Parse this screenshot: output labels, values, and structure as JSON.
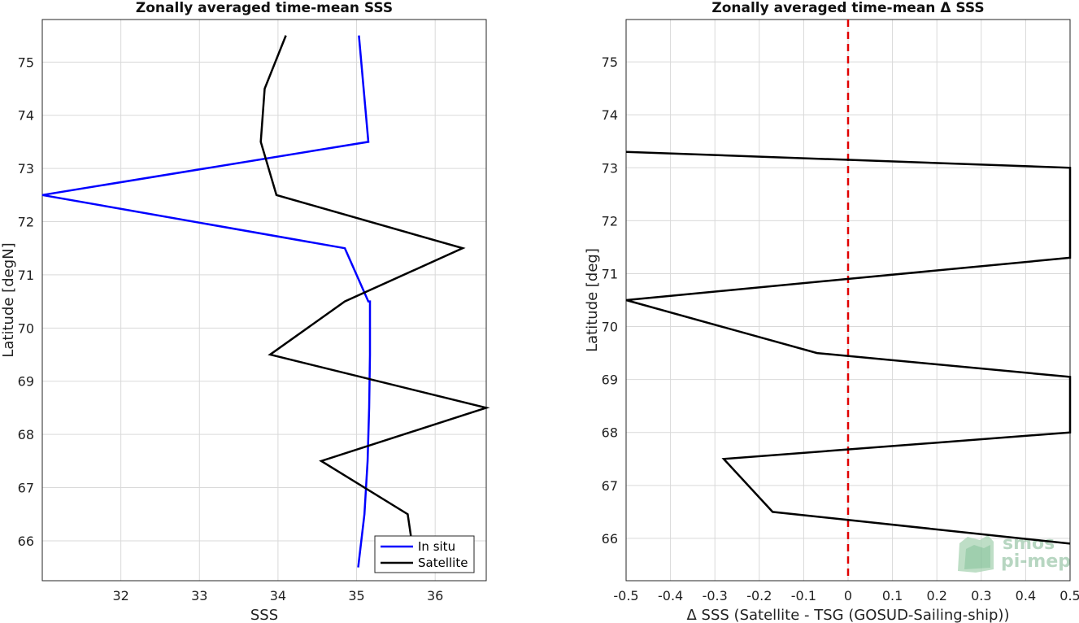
{
  "chart_data": [
    {
      "type": "line",
      "title": "Zonally averaged time-mean SSS",
      "xlabel": "SSS",
      "ylabel": "Latitude [degN]",
      "xlim": [
        31.0,
        36.65
      ],
      "ylim": [
        65.25,
        75.8
      ],
      "xticks": [
        "32",
        "33",
        "34",
        "35",
        "36"
      ],
      "yticks": [
        "66",
        "67",
        "68",
        "69",
        "70",
        "71",
        "72",
        "73",
        "74",
        "75"
      ],
      "grid": true,
      "legend_position": "bottom-right",
      "series": [
        {
          "name": "In situ",
          "color": "#0000ff",
          "x": [
            35.02,
            35.1,
            35.14,
            35.16,
            35.17,
            35.17,
            35.15,
            34.85,
            31.0,
            35.15,
            35.09,
            35.03
          ],
          "y": [
            65.5,
            66.5,
            67.5,
            68.5,
            69.5,
            70.5,
            70.5,
            71.5,
            72.5,
            73.5,
            74.5,
            75.5
          ]
        },
        {
          "name": "Satellite",
          "color": "#000000",
          "x": [
            35.75,
            35.65,
            34.55,
            36.65,
            33.9,
            34.85,
            36.35,
            33.98,
            33.78,
            33.83,
            34.1
          ],
          "y": [
            65.5,
            66.5,
            67.5,
            68.5,
            69.5,
            70.5,
            71.5,
            72.5,
            73.5,
            74.5,
            75.5
          ]
        }
      ]
    },
    {
      "type": "line",
      "title": "Zonally averaged time-mean Δ SSS",
      "xlabel": "Δ SSS (Satellite - TSG (GOSUD-Sailing-ship))",
      "ylabel": "Latitude [deg]",
      "xlim": [
        -0.5,
        0.5
      ],
      "ylim": [
        65.2,
        75.8
      ],
      "xticks": [
        "-0.5",
        "-0.4",
        "-0.3",
        "-0.2",
        "-0.1",
        "0",
        "0.1",
        "0.2",
        "0.3",
        "0.4",
        "0.5"
      ],
      "yticks": [
        "66",
        "67",
        "68",
        "69",
        "70",
        "71",
        "72",
        "73",
        "74",
        "75"
      ],
      "grid": true,
      "reference_line": {
        "x": 0,
        "color": "#e00000",
        "style": "dashed"
      },
      "series": [
        {
          "color": "#000000",
          "x": [
            0.5,
            -0.17,
            -0.28,
            0.5,
            0.5,
            -0.07,
            -0.5,
            0.5,
            0.5,
            -0.5
          ],
          "y": [
            65.9,
            66.5,
            67.5,
            68.0,
            69.05,
            69.5,
            70.5,
            71.3,
            73.0,
            73.3
          ]
        }
      ]
    }
  ],
  "logo": {
    "line1": "smos",
    "line2": "pi-mep"
  }
}
